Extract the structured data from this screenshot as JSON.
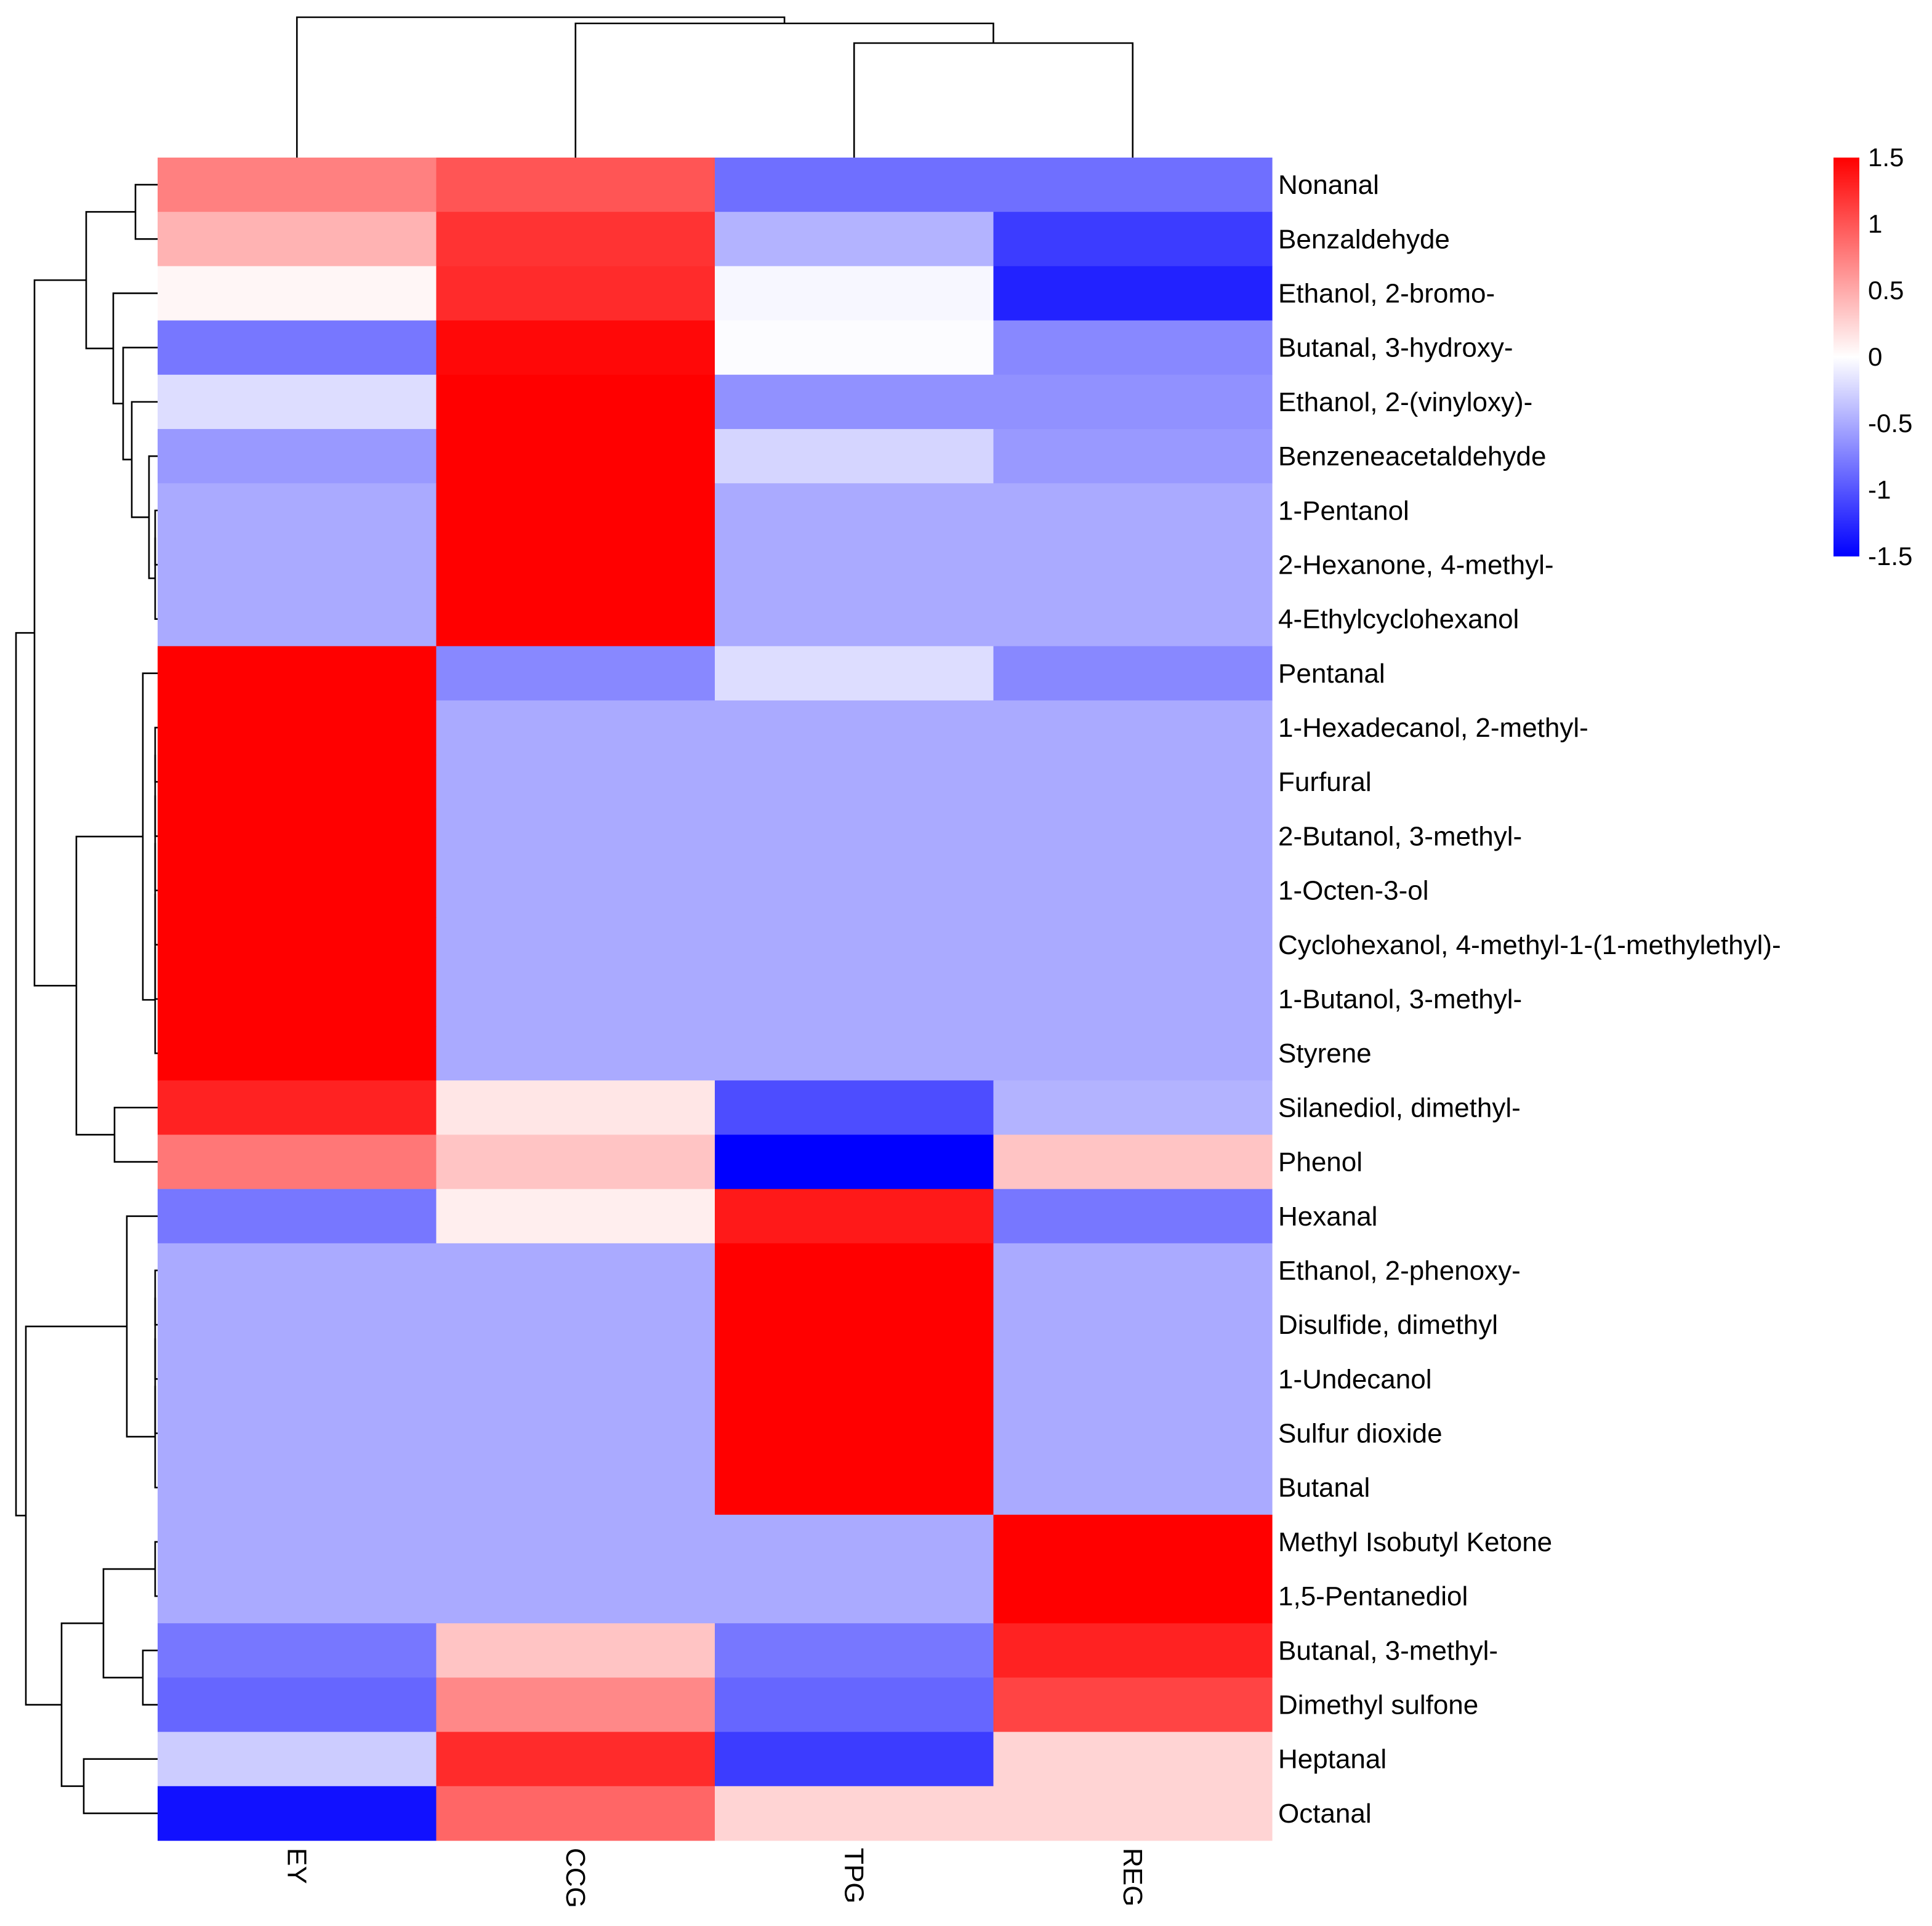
{
  "chart_data": {
    "type": "heatmap",
    "title": "",
    "columns": [
      "EY",
      "CCG",
      "TPG",
      "REG"
    ],
    "rows": [
      "Nonanal",
      "Benzaldehyde",
      "Ethanol, 2-bromo-",
      "Butanal, 3-hydroxy-",
      "Ethanol, 2-(vinyloxy)-",
      "Benzeneacetaldehyde",
      "1-Pentanol",
      "2-Hexanone, 4-methyl-",
      "4-Ethylcyclohexanol",
      "Pentanal",
      "1-Hexadecanol, 2-methyl-",
      "Furfural",
      "2-Butanol, 3-methyl-",
      "1-Octen-3-ol",
      "Cyclohexanol, 4-methyl-1-(1-methylethyl)-",
      "1-Butanol, 3-methyl-",
      "Styrene",
      "Silanediol, dimethyl-",
      "Phenol",
      "Hexanal",
      "Ethanol, 2-phenoxy-",
      "Disulfide, dimethyl",
      "1-Undecanol",
      "Sulfur dioxide",
      "Butanal",
      "Methyl Isobutyl Ketone",
      "1,5-Pentanediol",
      "Butanal, 3-methyl-",
      "Dimethyl sulfone",
      "Heptanal",
      "Octanal"
    ],
    "values": [
      [
        0.75,
        1.0,
        -0.85,
        -0.85
      ],
      [
        0.45,
        1.2,
        -0.45,
        -1.15
      ],
      [
        0.05,
        1.25,
        -0.05,
        -1.3
      ],
      [
        -0.8,
        1.45,
        -0.02,
        -0.7
      ],
      [
        -0.2,
        1.5,
        -0.65,
        -0.65
      ],
      [
        -0.6,
        1.5,
        -0.25,
        -0.6
      ],
      [
        -0.5,
        1.5,
        -0.5,
        -0.5
      ],
      [
        -0.5,
        1.5,
        -0.5,
        -0.5
      ],
      [
        -0.5,
        1.5,
        -0.5,
        -0.5
      ],
      [
        1.5,
        -0.7,
        -0.2,
        -0.7
      ],
      [
        1.5,
        -0.5,
        -0.5,
        -0.5
      ],
      [
        1.5,
        -0.5,
        -0.5,
        -0.5
      ],
      [
        1.5,
        -0.5,
        -0.5,
        -0.5
      ],
      [
        1.5,
        -0.5,
        -0.5,
        -0.5
      ],
      [
        1.5,
        -0.5,
        -0.5,
        -0.5
      ],
      [
        1.5,
        -0.5,
        -0.5,
        -0.5
      ],
      [
        1.5,
        -0.5,
        -0.5,
        -0.5
      ],
      [
        1.3,
        0.15,
        -1.05,
        -0.45
      ],
      [
        0.8,
        0.35,
        -1.5,
        0.35
      ],
      [
        -0.8,
        0.1,
        1.35,
        -0.8
      ],
      [
        -0.5,
        -0.5,
        1.5,
        -0.5
      ],
      [
        -0.5,
        -0.5,
        1.5,
        -0.5
      ],
      [
        -0.5,
        -0.5,
        1.5,
        -0.5
      ],
      [
        -0.5,
        -0.5,
        1.5,
        -0.5
      ],
      [
        -0.5,
        -0.5,
        1.5,
        -0.5
      ],
      [
        -0.5,
        -0.5,
        -0.5,
        1.5
      ],
      [
        -0.5,
        -0.5,
        -0.5,
        1.5
      ],
      [
        -0.8,
        0.35,
        -0.8,
        1.3
      ],
      [
        -0.9,
        0.7,
        -0.9,
        1.1
      ],
      [
        -0.3,
        1.25,
        -1.15,
        0.25
      ],
      [
        -1.4,
        0.9,
        0.25,
        0.25
      ]
    ],
    "color_scale": {
      "min": -1.5,
      "max": 1.5,
      "low_color": "#0000ff",
      "mid_color": "#ffffff",
      "high_color": "#ff0000",
      "ticks": [
        1.5,
        1,
        0.5,
        0,
        -0.5,
        -1,
        -1.5
      ],
      "tick_labels": [
        "1.5",
        "1",
        "0.5",
        "0",
        "-0.5",
        "-1",
        "-1.5"
      ]
    },
    "row_dendrogram": true,
    "column_dendrogram": true,
    "legend_position": "top-right"
  }
}
